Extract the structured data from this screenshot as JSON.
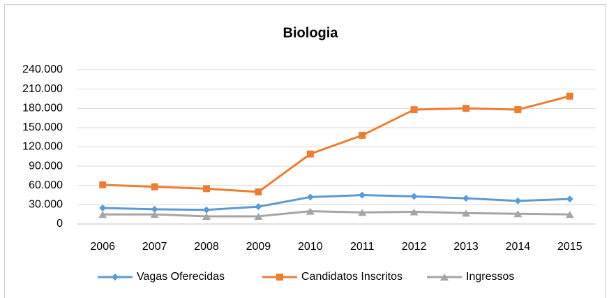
{
  "chart_data": {
    "type": "line",
    "title": "Biologia",
    "categories": [
      "2006",
      "2007",
      "2008",
      "2009",
      "2010",
      "2011",
      "2012",
      "2013",
      "2014",
      "2015"
    ],
    "series": [
      {
        "name": "Vagas Oferecidas",
        "color": "#5b9bd5",
        "marker": "diamond",
        "values": [
          25000,
          23000,
          22000,
          27000,
          42000,
          45000,
          43000,
          40000,
          36000,
          39000
        ]
      },
      {
        "name": "Candidatos Inscritos",
        "color": "#ed7d31",
        "marker": "square",
        "values": [
          61000,
          58000,
          55000,
          50000,
          109000,
          138000,
          178000,
          180000,
          178000,
          199000
        ]
      },
      {
        "name": "Ingressos",
        "color": "#a5a5a5",
        "marker": "triangle",
        "values": [
          15000,
          15000,
          12000,
          12000,
          20000,
          18000,
          19000,
          17000,
          16000,
          15000
        ]
      }
    ],
    "ylim": [
      0,
      240000
    ],
    "yticks": [
      0,
      {
        "value": 30000,
        "label": "30.000"
      },
      {
        "value": 60000,
        "label": "60.000"
      },
      {
        "value": 90000,
        "label": "90.000"
      },
      {
        "value": 120000,
        "label": "120.000"
      },
      {
        "value": 150000,
        "label": "150.000"
      },
      {
        "value": 180000,
        "label": "180.000"
      },
      {
        "value": 210000,
        "label": "210.000"
      },
      {
        "value": 240000,
        "label": "240.000"
      }
    ],
    "grid": true,
    "legend": "bottom"
  }
}
